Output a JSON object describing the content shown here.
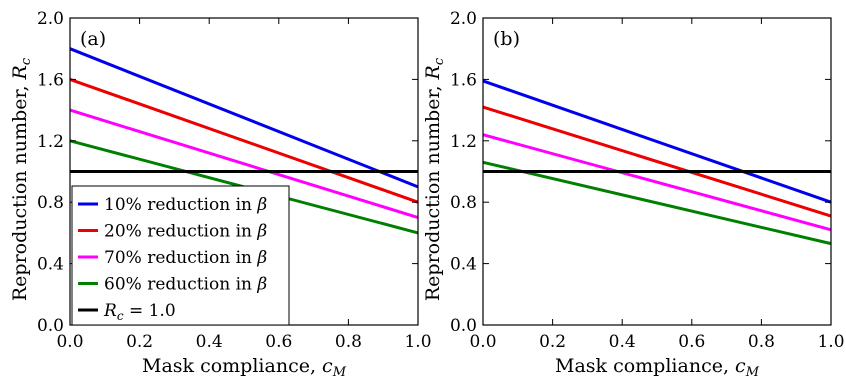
{
  "chart_data": [
    {
      "type": "line",
      "panel_label": "(a)",
      "xlabel": "Mask compliance, c_M",
      "ylabel": "Reproduction number, R_c",
      "xlim": [
        0.0,
        1.0
      ],
      "ylim": [
        0.0,
        2.0
      ],
      "xticks": [
        "0.0",
        "0.2",
        "0.4",
        "0.6",
        "0.8",
        "1.0"
      ],
      "yticks": [
        "0.0",
        "0.4",
        "0.8",
        "1.2",
        "1.6",
        "2.0"
      ],
      "grid": false,
      "legend_position": "lower-left",
      "series": [
        {
          "name": "10% reduction in β",
          "color": "#0000ee",
          "x": [
            0.0,
            1.0
          ],
          "y": [
            1.8,
            0.9
          ]
        },
        {
          "name": "20% reduction in β",
          "color": "#ee0000",
          "x": [
            0.0,
            1.0
          ],
          "y": [
            1.6,
            0.8
          ]
        },
        {
          "name": "70% reduction in β",
          "color": "#ff00ff",
          "x": [
            0.0,
            1.0
          ],
          "y": [
            1.4,
            0.7
          ]
        },
        {
          "name": "60% reduction in β",
          "color": "#008000",
          "x": [
            0.0,
            1.0
          ],
          "y": [
            1.2,
            0.6
          ]
        },
        {
          "name": "R_c = 1.0",
          "color": "#000000",
          "x": [
            0.0,
            1.0
          ],
          "y": [
            1.0,
            1.0
          ]
        }
      ]
    },
    {
      "type": "line",
      "panel_label": "(b)",
      "xlabel": "Mask compliance, c_M",
      "ylabel": "Reproduction number, R_c",
      "xlim": [
        0.0,
        1.0
      ],
      "ylim": [
        0.0,
        2.0
      ],
      "xticks": [
        "0.0",
        "0.2",
        "0.4",
        "0.6",
        "0.8",
        "1.0"
      ],
      "yticks": [
        "0.0",
        "0.4",
        "0.8",
        "1.2",
        "1.6",
        "2.0"
      ],
      "grid": false,
      "series": [
        {
          "color": "#0000ee",
          "x": [
            0.0,
            1.0
          ],
          "y": [
            1.59,
            0.8
          ]
        },
        {
          "color": "#ee0000",
          "x": [
            0.0,
            1.0
          ],
          "y": [
            1.42,
            0.71
          ]
        },
        {
          "color": "#ff00ff",
          "x": [
            0.0,
            1.0
          ],
          "y": [
            1.24,
            0.62
          ]
        },
        {
          "color": "#008000",
          "x": [
            0.0,
            1.0
          ],
          "y": [
            1.06,
            0.53
          ]
        },
        {
          "color": "#000000",
          "x": [
            0.0,
            1.0
          ],
          "y": [
            1.0,
            1.0
          ]
        }
      ]
    }
  ]
}
